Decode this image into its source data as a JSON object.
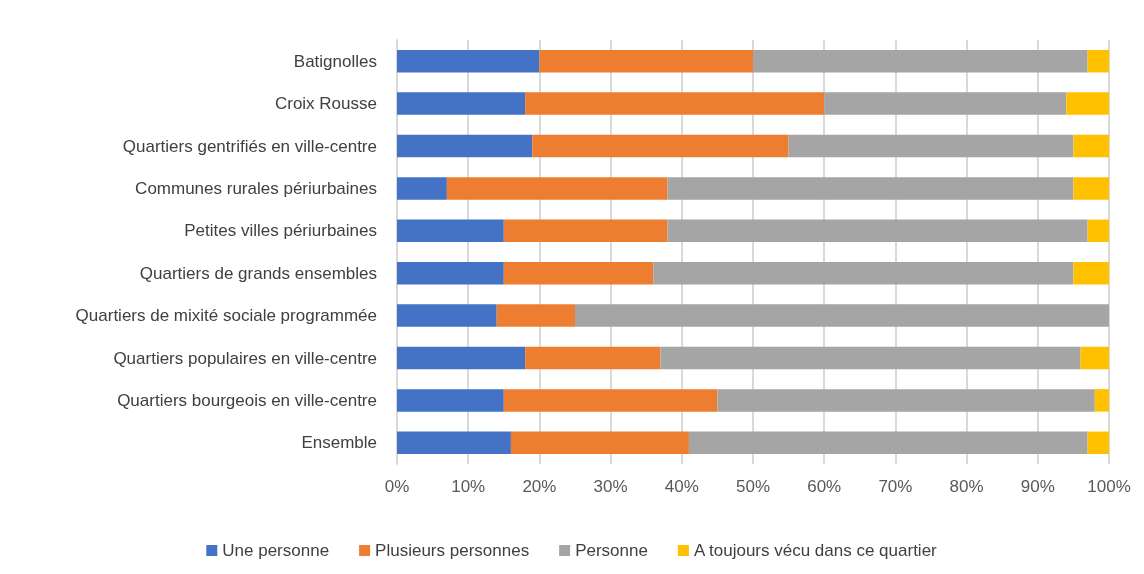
{
  "chart_data": {
    "type": "bar",
    "orientation": "horizontal",
    "stacked": true,
    "categories": [
      "Batignolles",
      "Croix Rousse",
      "Quartiers gentrifiés en ville-centre",
      "Communes rurales périurbaines",
      "Petites villes périurbaines",
      "Quartiers de grands ensembles",
      "Quartiers de mixité sociale programmée",
      "Quartiers populaires en ville-centre",
      "Quartiers bourgeois en ville-centre",
      "Ensemble"
    ],
    "series": [
      {
        "name": "Une personne",
        "color": "#4472c4",
        "values": [
          20,
          18,
          19,
          7,
          15,
          15,
          14,
          18,
          15,
          16
        ]
      },
      {
        "name": "Plusieurs personnes",
        "color": "#ed7d31",
        "values": [
          30,
          42,
          36,
          31,
          23,
          21,
          11,
          19,
          30,
          25
        ]
      },
      {
        "name": "Personne",
        "color": "#a5a5a5",
        "values": [
          47,
          34,
          40,
          57,
          59,
          59,
          75,
          59,
          53,
          56
        ]
      },
      {
        "name": "A toujours vécu dans ce quartier",
        "color": "#ffc000",
        "values": [
          3,
          6,
          5,
          5,
          3,
          5,
          0,
          4,
          2,
          3
        ]
      }
    ],
    "xlim": [
      0,
      100
    ],
    "xticks": [
      {
        "value": 0,
        "label": "0%"
      },
      {
        "value": 10,
        "label": "10%"
      },
      {
        "value": 20,
        "label": "20%"
      },
      {
        "value": 30,
        "label": "30%"
      },
      {
        "value": 40,
        "label": "40%"
      },
      {
        "value": 50,
        "label": "50%"
      },
      {
        "value": 60,
        "label": "60%"
      },
      {
        "value": 70,
        "label": "70%"
      },
      {
        "value": 80,
        "label": "80%"
      },
      {
        "value": 90,
        "label": "90%"
      },
      {
        "value": 100,
        "label": "100%"
      }
    ],
    "grid": "x",
    "legend": "bottom"
  }
}
